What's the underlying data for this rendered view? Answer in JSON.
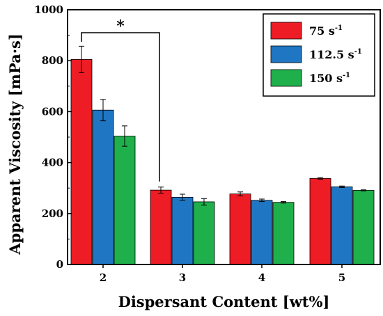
{
  "chart_data": {
    "type": "bar",
    "xlabel": "Dispersant Content [wt%]",
    "ylabel": "Apparent Viscosity [mPa·s]",
    "ylim": [
      0,
      1000
    ],
    "yticks": [
      0,
      200,
      400,
      600,
      800,
      1000
    ],
    "categories": [
      "2",
      "3",
      "4",
      "5"
    ],
    "series": [
      {
        "name": "75 s-1",
        "name_base": "75 s",
        "name_sup": "-1",
        "color": "#ee1c25",
        "values": [
          805,
          292,
          277,
          338
        ],
        "errors": [
          52,
          12,
          8,
          3
        ]
      },
      {
        "name": "112.5 s-1",
        "name_base": "112.5 s",
        "name_sup": "-1",
        "color": "#1f77c4",
        "values": [
          606,
          264,
          252,
          305
        ],
        "errors": [
          42,
          12,
          5,
          3
        ]
      },
      {
        "name": "150 s-1",
        "name_base": "150 s",
        "name_sup": "-1",
        "color": "#1fb04b",
        "values": [
          504,
          246,
          244,
          291
        ],
        "errors": [
          40,
          13,
          3,
          2
        ]
      }
    ],
    "legend_position": "top-right",
    "grid": false,
    "annotation": {
      "text": "*",
      "from_category": "2",
      "to_category": "3"
    }
  }
}
